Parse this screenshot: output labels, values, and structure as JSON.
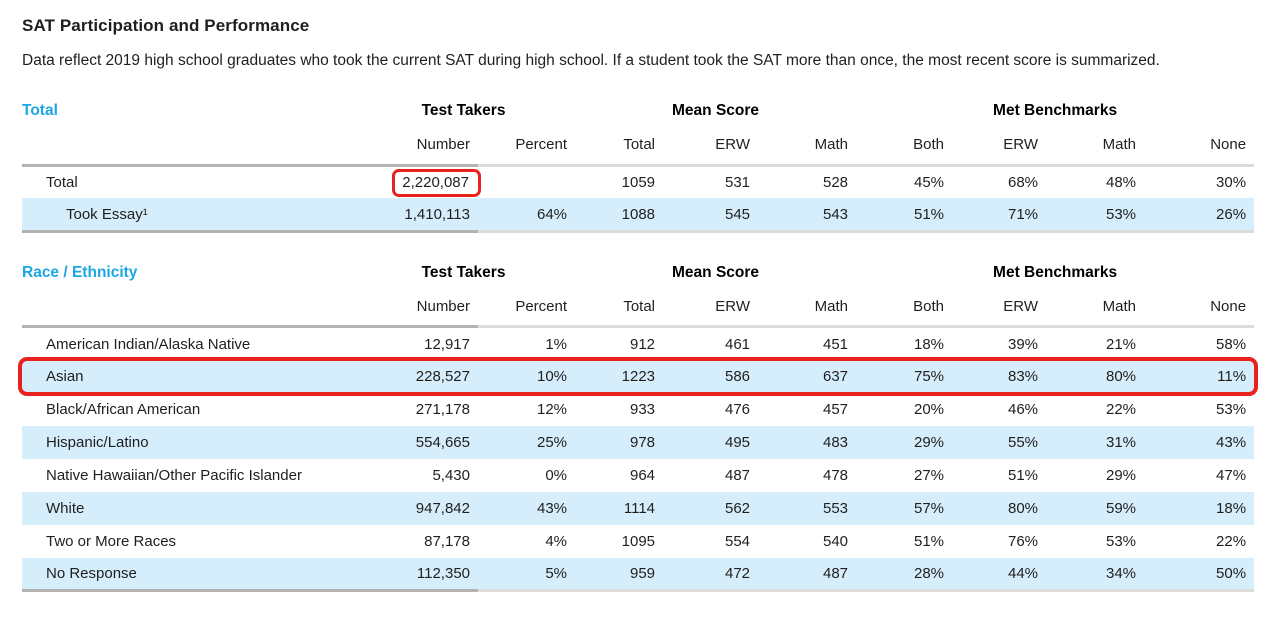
{
  "page": {
    "title": "SAT Participation and Performance",
    "description": "Data reflect 2019 high school graduates who took the current SAT during high school. If a student took the SAT more than once, the most recent score is summarized."
  },
  "colors": {
    "accent_blue": "#1ca6e3",
    "row_shade": "#d6eefb",
    "annotation_red": "#e8231d",
    "rule_dark": "#b3b3b3",
    "rule_light": "#dcdcdc"
  },
  "columns": {
    "groups": [
      {
        "label": "Test Takers",
        "span": 2
      },
      {
        "label": "Mean Score",
        "span": 3
      },
      {
        "label": "Met Benchmarks",
        "span": 4
      }
    ],
    "headers": [
      "Number",
      "Percent",
      "Total",
      "ERW",
      "Math",
      "Both",
      "ERW",
      "Math",
      "None"
    ]
  },
  "tables": [
    {
      "id": "total",
      "section_label": "Total",
      "rows": [
        {
          "label": "Total",
          "indent": false,
          "shaded": false,
          "annotate_value": 0,
          "values": [
            "2,220,087",
            "",
            "1059",
            "531",
            "528",
            "45%",
            "68%",
            "48%",
            "30%"
          ]
        },
        {
          "label": "Took Essay¹",
          "indent": true,
          "shaded": true,
          "values": [
            "1,410,113",
            "64%",
            "1088",
            "545",
            "543",
            "51%",
            "71%",
            "53%",
            "26%"
          ]
        }
      ]
    },
    {
      "id": "race-ethnicity",
      "section_label": "Race / Ethnicity",
      "rows": [
        {
          "label": "American Indian/Alaska Native",
          "shaded": false,
          "values": [
            "12,917",
            "1%",
            "912",
            "461",
            "451",
            "18%",
            "39%",
            "21%",
            "58%"
          ]
        },
        {
          "label": "Asian",
          "shaded": true,
          "annotate_row": true,
          "values": [
            "228,527",
            "10%",
            "1223",
            "586",
            "637",
            "75%",
            "83%",
            "80%",
            "11%"
          ]
        },
        {
          "label": "Black/African American",
          "shaded": false,
          "values": [
            "271,178",
            "12%",
            "933",
            "476",
            "457",
            "20%",
            "46%",
            "22%",
            "53%"
          ]
        },
        {
          "label": "Hispanic/Latino",
          "shaded": true,
          "values": [
            "554,665",
            "25%",
            "978",
            "495",
            "483",
            "29%",
            "55%",
            "31%",
            "43%"
          ]
        },
        {
          "label": "Native Hawaiian/Other Pacific Islander",
          "shaded": false,
          "values": [
            "5,430",
            "0%",
            "964",
            "487",
            "478",
            "27%",
            "51%",
            "29%",
            "47%"
          ]
        },
        {
          "label": "White",
          "shaded": true,
          "values": [
            "947,842",
            "43%",
            "1114",
            "562",
            "553",
            "57%",
            "80%",
            "59%",
            "18%"
          ]
        },
        {
          "label": "Two or More Races",
          "shaded": false,
          "values": [
            "87,178",
            "4%",
            "1095",
            "554",
            "540",
            "51%",
            "76%",
            "53%",
            "22%"
          ]
        },
        {
          "label": "No Response",
          "shaded": true,
          "values": [
            "112,350",
            "5%",
            "959",
            "472",
            "487",
            "28%",
            "44%",
            "34%",
            "50%"
          ]
        }
      ]
    }
  ]
}
